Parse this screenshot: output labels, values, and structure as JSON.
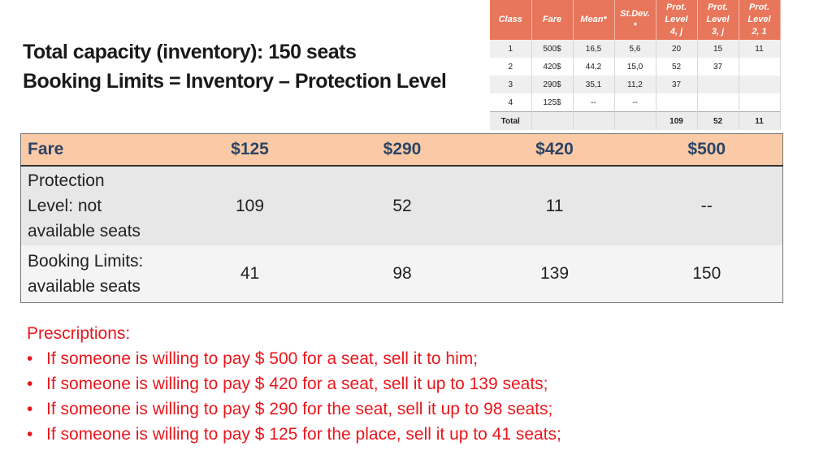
{
  "heading": {
    "line1": "Total capacity (inventory): 150 seats",
    "line2": "Booking Limits = Inventory – Protection Level"
  },
  "ref_table": {
    "headers": {
      "class": "Class",
      "fare": "Fare",
      "mean": "Mean*",
      "stdev_1": "St.Dev.",
      "stdev_2": "*",
      "p1_1": "Prot.",
      "p1_2": "Level",
      "p1_3": "4, j",
      "p2_1": "Prot.",
      "p2_2": "Level",
      "p2_3": "3, j",
      "p3_1": "Prot.",
      "p3_2": "Level",
      "p3_3": "2, 1"
    },
    "rows": [
      {
        "class": "1",
        "fare": "500$",
        "mean": "16,5",
        "stdev": "5,6",
        "p1": "20",
        "p2": "15",
        "p3": "11"
      },
      {
        "class": "2",
        "fare": "420$",
        "mean": "44,2",
        "stdev": "15,0",
        "p1": "52",
        "p2": "37",
        "p3": ""
      },
      {
        "class": "3",
        "fare": "290$",
        "mean": "35,1",
        "stdev": "11,2",
        "p1": "37",
        "p2": "",
        "p3": ""
      },
      {
        "class": "4",
        "fare": "125$",
        "mean": "--",
        "stdev": "--",
        "p1": "",
        "p2": "",
        "p3": ""
      }
    ],
    "total": {
      "label": "Total",
      "p1": "109",
      "p2": "52",
      "p3": "11"
    }
  },
  "main_table": {
    "header": {
      "label": "Fare",
      "f1": "$125",
      "f2": "$290",
      "f3": "$420",
      "f4": "$500"
    },
    "protection": {
      "label_1": "Protection",
      "label_2": "Level: not",
      "label_3": "available seats",
      "v1": "109",
      "v2": "52",
      "v3": "11",
      "v4": "--"
    },
    "booking": {
      "label_1": "Booking Limits:",
      "label_2": "available seats",
      "v1": "41",
      "v2": "98",
      "v3": "139",
      "v4": "150"
    }
  },
  "prescriptions": {
    "title": "Prescriptions:",
    "bullet": "•",
    "items": [
      "If someone is willing to pay $ 500 for a seat, sell it to him;",
      "If someone is willing to pay $ 420 for a seat, sell it up to 139 seats;",
      "If someone is willing to pay $ 290 for the seat, sell it up to 98 seats;",
      "If someone is willing to pay $ 125 for the place, sell it up to 41 seats;"
    ]
  },
  "colors": {
    "ref_header_bg": "#e8765a",
    "main_header_bg": "#f9caa5",
    "main_header_text": "#2b4466",
    "prescription_text": "#e8171c"
  }
}
